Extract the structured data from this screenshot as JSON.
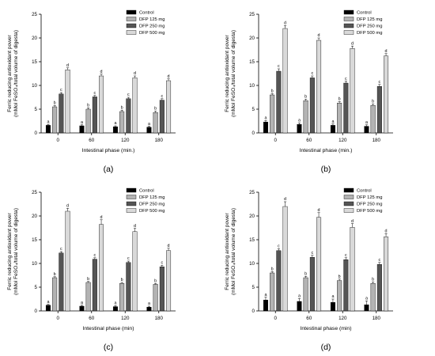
{
  "figure": {
    "panels": [
      "(a)",
      "(b)",
      "(c)",
      "(d)"
    ]
  },
  "chart_data": [
    {
      "type": "bar",
      "panel_label": "(a)",
      "categories": [
        "0",
        "60",
        "120",
        "180"
      ],
      "xlabel": "Intestinal phase (min.)",
      "ylabel_line1": "Ferric reducing antioxidant power",
      "ylabel_line2": "(mMol FeSO₄/total volume of digesta)",
      "ylim": [
        0,
        25
      ],
      "yticks": [
        0,
        5,
        10,
        15,
        20,
        25
      ],
      "grid": false,
      "legend_position": "top-right",
      "series": [
        {
          "name": "Control",
          "color": "#000000",
          "values": [
            1.6,
            1.5,
            1.3,
            1.2
          ],
          "errors": [
            0.2,
            0.2,
            0.2,
            0.2
          ],
          "letters": [
            "a",
            "a",
            "a",
            "a"
          ]
        },
        {
          "name": "DFP 125 mg",
          "color": "#b3b3b3",
          "values": [
            5.5,
            5.0,
            4.5,
            4.3
          ],
          "errors": [
            0.3,
            0.3,
            0.3,
            0.3
          ],
          "letters": [
            "b",
            "b",
            "b",
            "b"
          ]
        },
        {
          "name": "DFP 250 mg",
          "color": "#555555",
          "values": [
            8.2,
            7.6,
            7.2,
            6.9
          ],
          "errors": [
            0.3,
            0.3,
            0.3,
            0.3
          ],
          "letters": [
            "c",
            "c",
            "c",
            "c"
          ]
        },
        {
          "name": "DFP 500 mg",
          "color": "#d9d9d9",
          "values": [
            13.3,
            12.0,
            11.6,
            11.0
          ],
          "errors": [
            0.4,
            0.4,
            0.4,
            0.4
          ],
          "letters": [
            "d",
            "d",
            "d",
            "d"
          ]
        }
      ]
    },
    {
      "type": "bar",
      "panel_label": "(b)",
      "categories": [
        "0",
        "60",
        "120",
        "180"
      ],
      "xlabel": "Intestinal phase (min.)",
      "ylabel_line1": "Ferric reducing antioxidant power",
      "ylabel_line2": "(mMol FeSO₄/total volume of digesta)",
      "ylim": [
        0,
        25
      ],
      "yticks": [
        0,
        5,
        10,
        15,
        20,
        25
      ],
      "grid": false,
      "legend_position": "top-right",
      "series": [
        {
          "name": "Control",
          "color": "#000000",
          "values": [
            2.3,
            1.8,
            1.6,
            1.4
          ],
          "errors": [
            0.3,
            0.3,
            0.3,
            0.3
          ],
          "letters": [
            "a",
            "a",
            "a",
            "a"
          ]
        },
        {
          "name": "DFP 125 mg",
          "color": "#b3b3b3",
          "values": [
            8.0,
            6.8,
            6.3,
            5.8
          ],
          "errors": [
            0.3,
            0.3,
            0.3,
            0.3
          ],
          "letters": [
            "b",
            "b",
            "b",
            "b"
          ]
        },
        {
          "name": "DFP 250 mg",
          "color": "#555555",
          "values": [
            13.0,
            11.6,
            10.5,
            9.8
          ],
          "errors": [
            0.5,
            0.4,
            0.4,
            0.4
          ],
          "letters": [
            "c",
            "c",
            "c",
            "c"
          ]
        },
        {
          "name": "DFP 500 mg",
          "color": "#d9d9d9",
          "values": [
            22.0,
            19.5,
            17.8,
            16.2
          ],
          "errors": [
            0.6,
            0.5,
            0.5,
            0.5
          ],
          "letters": [
            "d",
            "d",
            "d",
            "d"
          ]
        }
      ]
    },
    {
      "type": "bar",
      "panel_label": "(c)",
      "categories": [
        "0",
        "60",
        "120",
        "180"
      ],
      "xlabel": "Intestinal phase (min)",
      "ylabel_line1": "Ferric reducing antioxidant power",
      "ylabel_line2": "(mMol FeSO₄/total volume of digesta)",
      "ylim": [
        0,
        25
      ],
      "yticks": [
        0,
        5,
        10,
        15,
        20,
        25
      ],
      "grid": false,
      "legend_position": "top-right",
      "series": [
        {
          "name": "Control",
          "color": "#000000",
          "values": [
            1.2,
            1.0,
            0.9,
            0.8
          ],
          "errors": [
            0.2,
            0.2,
            0.2,
            0.2
          ],
          "letters": [
            "a",
            "a",
            "a",
            "a"
          ]
        },
        {
          "name": "DFP 125 mg",
          "color": "#b3b3b3",
          "values": [
            7.0,
            6.0,
            5.8,
            5.6
          ],
          "errors": [
            0.2,
            0.2,
            0.2,
            0.2
          ],
          "letters": [
            "b",
            "b",
            "b",
            "b"
          ]
        },
        {
          "name": "DFP 250 mg",
          "color": "#555555",
          "values": [
            12.2,
            10.9,
            10.2,
            9.3
          ],
          "errors": [
            0.3,
            0.3,
            0.3,
            0.3
          ],
          "letters": [
            "c",
            "c",
            "c",
            "c"
          ]
        },
        {
          "name": "DFP 500 mg",
          "color": "#d9d9d9",
          "values": [
            21.0,
            18.2,
            16.7,
            12.7
          ],
          "errors": [
            0.6,
            1.0,
            0.7,
            0.5
          ],
          "letters": [
            "d",
            "d",
            "d",
            "d"
          ]
        }
      ]
    },
    {
      "type": "bar",
      "panel_label": "(d)",
      "categories": [
        "0",
        "60",
        "120",
        "180"
      ],
      "xlabel": "Intestinal phase (min)",
      "ylabel_line1": "Ferric reducing antioxidant power",
      "ylabel_line2": "(mMol FeSO₄/total volume of digesta)",
      "ylim": [
        0,
        25
      ],
      "yticks": [
        0,
        5,
        10,
        15,
        20,
        25
      ],
      "grid": false,
      "legend_position": "top-right",
      "series": [
        {
          "name": "Control",
          "color": "#000000",
          "values": [
            2.3,
            2.0,
            1.8,
            1.3
          ],
          "errors": [
            0.6,
            0.6,
            0.7,
            0.8
          ],
          "letters": [
            "a",
            "a",
            "a",
            "a"
          ]
        },
        {
          "name": "DFP 125 mg",
          "color": "#b3b3b3",
          "values": [
            8.0,
            7.0,
            6.4,
            5.8
          ],
          "errors": [
            0.3,
            0.3,
            0.3,
            0.3
          ],
          "letters": [
            "b",
            "b",
            "b",
            "b"
          ]
        },
        {
          "name": "DFP 250 mg",
          "color": "#555555",
          "values": [
            12.7,
            11.3,
            10.8,
            9.8
          ],
          "errors": [
            0.4,
            0.4,
            0.4,
            0.4
          ],
          "letters": [
            "c",
            "c",
            "c",
            "c"
          ]
        },
        {
          "name": "DFP 500 mg",
          "color": "#d9d9d9",
          "values": [
            22.0,
            19.7,
            17.6,
            15.6
          ],
          "errors": [
            1.0,
            1.0,
            0.8,
            0.7
          ],
          "letters": [
            "d",
            "d",
            "d",
            "d"
          ]
        }
      ]
    }
  ]
}
